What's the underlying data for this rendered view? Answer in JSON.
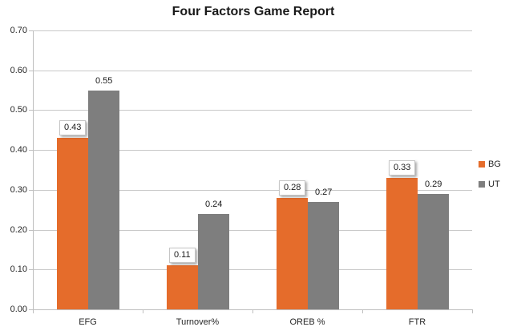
{
  "title": "Four Factors Game Report",
  "chart_data": {
    "type": "bar",
    "title": "Four Factors Game Report",
    "xlabel": "",
    "ylabel": "",
    "categories": [
      "EFG",
      "Turnover%",
      "OREB %",
      "FTR"
    ],
    "series": [
      {
        "name": "BG",
        "color": "#e56c2b",
        "values": [
          0.43,
          0.11,
          0.28,
          0.33
        ],
        "value_labels": [
          "0.43",
          "0.11",
          "0.28",
          "0.33"
        ],
        "label_style": "boxed"
      },
      {
        "name": "UT",
        "color": "#7e7e7e",
        "values": [
          0.55,
          0.24,
          0.27,
          0.29
        ],
        "value_labels": [
          "0.55",
          "0.24",
          "0.27",
          "0.29"
        ],
        "label_style": "plain"
      }
    ],
    "ylim": [
      0,
      0.7
    ],
    "ytick_labels": [
      "0.00",
      "0.10",
      "0.20",
      "0.30",
      "0.40",
      "0.50",
      "0.60",
      "0.70"
    ],
    "grid": true,
    "legend_position": "right",
    "colors": {
      "gridline": "#c8c8c8",
      "axis": "#bfbfbf",
      "text": "#262626",
      "title_text": "#1a1a1a"
    }
  }
}
